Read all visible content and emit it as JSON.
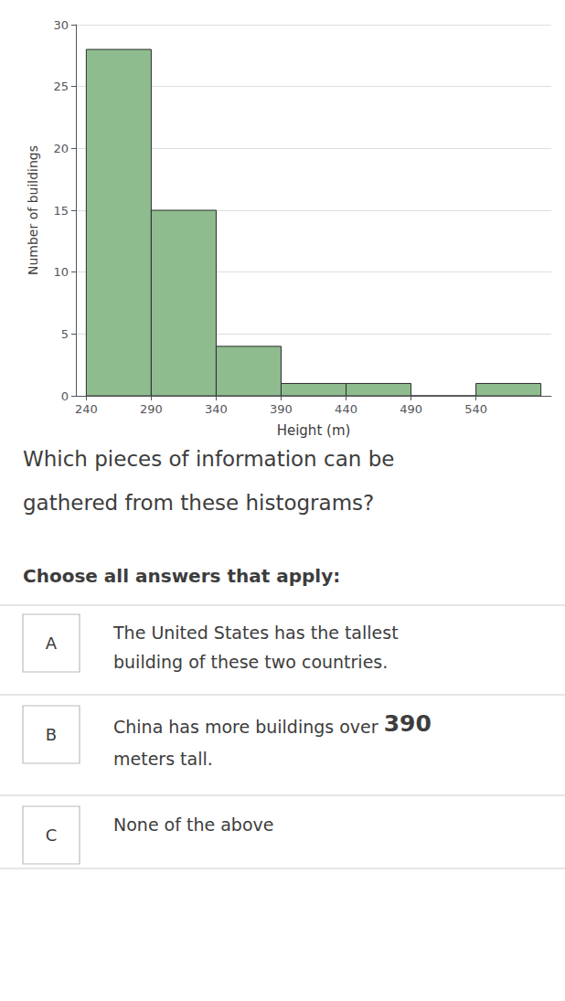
{
  "chart_data": {
    "type": "histogram",
    "bins": [
      240,
      290,
      340,
      390,
      440,
      490,
      540,
      590
    ],
    "values": [
      28,
      15,
      4,
      1,
      1,
      0,
      1
    ],
    "color": "#8fbc8f",
    "xlabel": "Height (m)",
    "ylabel": "Number of buildings",
    "xlim": [
      232,
      598
    ],
    "xticks": [
      240,
      290,
      340,
      390,
      440,
      490,
      540
    ],
    "ylim": [
      0,
      30
    ],
    "yticks": [
      0,
      5,
      10,
      15,
      20,
      25,
      30
    ],
    "grid": true,
    "annotations": [
      "Which pieces of information can be",
      "gathered from these histograms?",
      "Choose all answers that apply:",
      "A",
      "The United States has the tallest",
      "building of these two countries.",
      "B",
      "China has more buildings over ",
      "390",
      "meters tall.",
      "C",
      "None of the above"
    ]
  }
}
